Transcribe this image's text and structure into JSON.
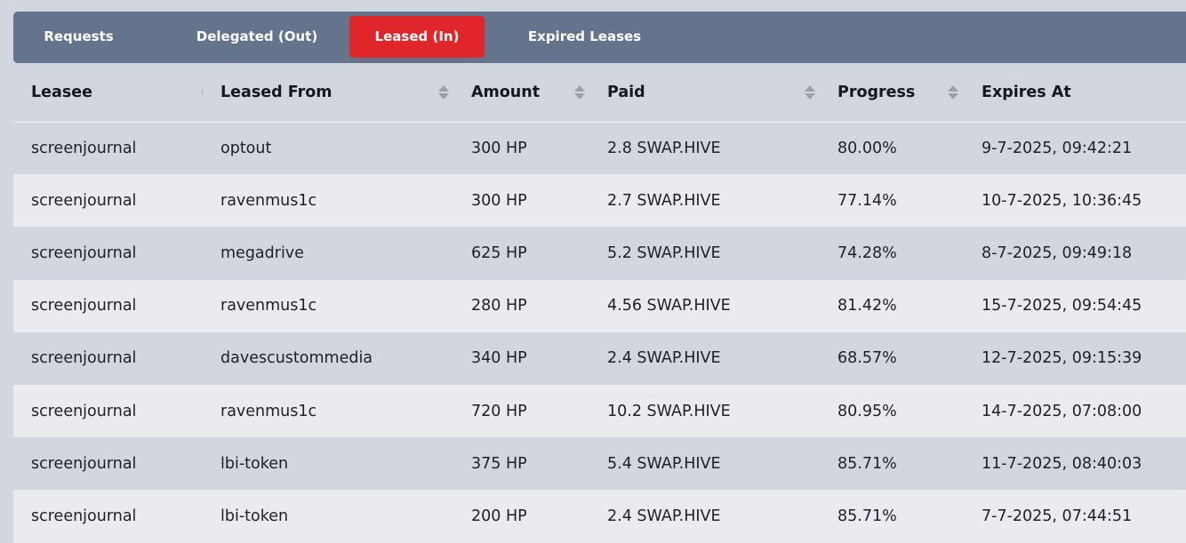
{
  "tabs": [
    {
      "label": "Requests",
      "active": false
    },
    {
      "label": "Delegated (Out)",
      "active": false
    },
    {
      "label": "Leased (In)",
      "active": true
    },
    {
      "label": "Expired Leases",
      "active": false
    }
  ],
  "colors": {
    "active_tab": "#e0262a",
    "tab_bar": "#63748c"
  },
  "table": {
    "columns": [
      "Leasee",
      "Leased From",
      "Amount",
      "Paid",
      "Progress",
      "Expires At"
    ],
    "rows": [
      [
        "screenjournal",
        "optout",
        "300 HP",
        "2.8 SWAP.HIVE",
        "80.00%",
        "9-7-2025, 09:42:21"
      ],
      [
        "screenjournal",
        "ravenmus1c",
        "300 HP",
        "2.7 SWAP.HIVE",
        "77.14%",
        "10-7-2025, 10:36:45"
      ],
      [
        "screenjournal",
        "megadrive",
        "625 HP",
        "5.2 SWAP.HIVE",
        "74.28%",
        "8-7-2025, 09:49:18"
      ],
      [
        "screenjournal",
        "ravenmus1c",
        "280 HP",
        "4.56 SWAP.HIVE",
        "81.42%",
        "15-7-2025, 09:54:45"
      ],
      [
        "screenjournal",
        "davescustommedia",
        "340 HP",
        "2.4 SWAP.HIVE",
        "68.57%",
        "12-7-2025, 09:15:39"
      ],
      [
        "screenjournal",
        "ravenmus1c",
        "720 HP",
        "10.2 SWAP.HIVE",
        "80.95%",
        "14-7-2025, 07:08:00"
      ],
      [
        "screenjournal",
        "lbi-token",
        "375 HP",
        "5.4 SWAP.HIVE",
        "85.71%",
        "11-7-2025, 08:40:03"
      ],
      [
        "screenjournal",
        "lbi-token",
        "200 HP",
        "2.4 SWAP.HIVE",
        "85.71%",
        "7-7-2025, 07:44:51"
      ]
    ]
  }
}
